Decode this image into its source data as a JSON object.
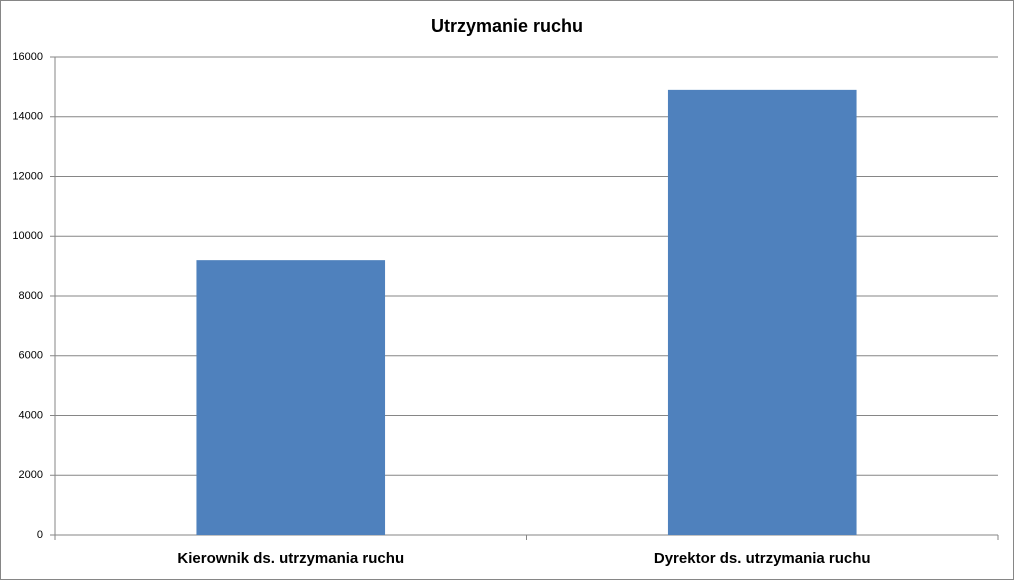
{
  "chart_data": {
    "type": "bar",
    "title": "Utrzymanie ruchu",
    "categories": [
      "Kierownik ds. utrzymania ruchu",
      "Dyrektor ds. utrzymania ruchu"
    ],
    "values": [
      9200,
      14900
    ],
    "color": "#4f81bd",
    "ylim": [
      0,
      16000
    ],
    "yticks": [
      0,
      2000,
      4000,
      6000,
      8000,
      10000,
      12000,
      14000,
      16000
    ],
    "grid": true
  }
}
